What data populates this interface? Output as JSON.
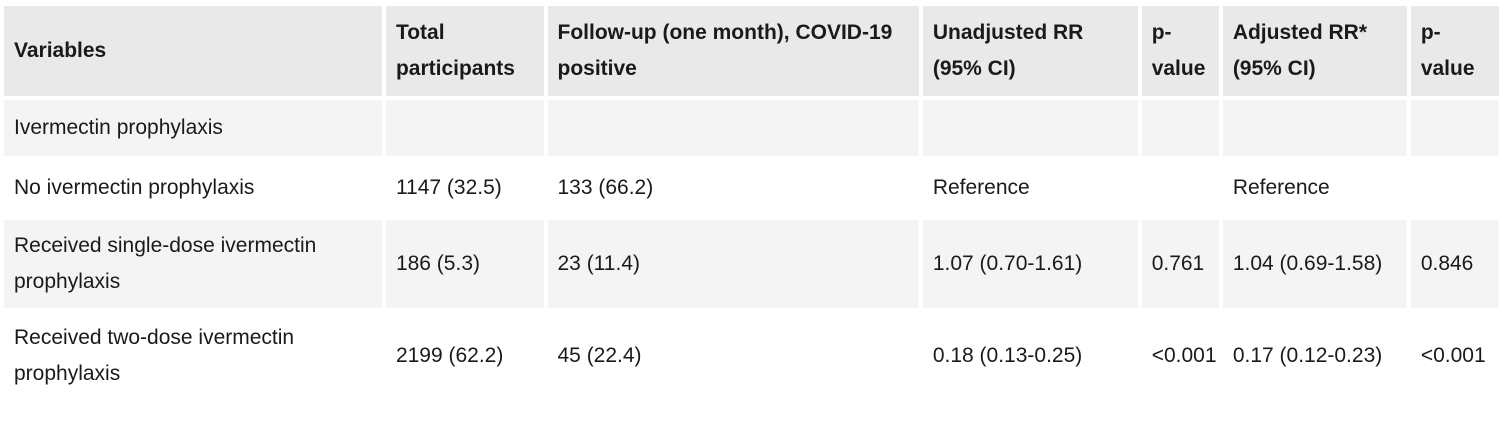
{
  "table": {
    "headers": [
      {
        "key": "variables",
        "label": "Variables"
      },
      {
        "key": "total",
        "label": "Total participants"
      },
      {
        "key": "followup",
        "label": " Follow-up (one month), COVID-19 positive"
      },
      {
        "key": "unadjusted",
        "label": "Unadjusted RR (95% CI)"
      },
      {
        "key": "p1",
        "label": "p-value"
      },
      {
        "key": "adjusted",
        "label": "Adjusted RR* (95% CI)"
      },
      {
        "key": "p2",
        "label": "p-value"
      }
    ],
    "rows": [
      {
        "cells": [
          "Ivermectin prophylaxis",
          "",
          "",
          "",
          "",
          "",
          ""
        ]
      },
      {
        "cells": [
          "No ivermectin prophylaxis",
          "1147 (32.5)",
          "133 (66.2)",
          "Reference",
          "",
          "Reference",
          ""
        ]
      },
      {
        "cells": [
          "Received single-dose ivermectin prophylaxis",
          "186 (5.3)",
          "23 (11.4)",
          "1.07 (0.70-1.61)",
          "0.761",
          "1.04 (0.69-1.58)",
          "0.846"
        ]
      },
      {
        "cells": [
          "Received two-dose ivermectin prophylaxis",
          "2199 (62.2)",
          "45 (22.4)",
          "0.18 (0.13-0.25)",
          "<0.001",
          "0.17 (0.12-0.23)",
          "<0.001"
        ]
      }
    ]
  }
}
